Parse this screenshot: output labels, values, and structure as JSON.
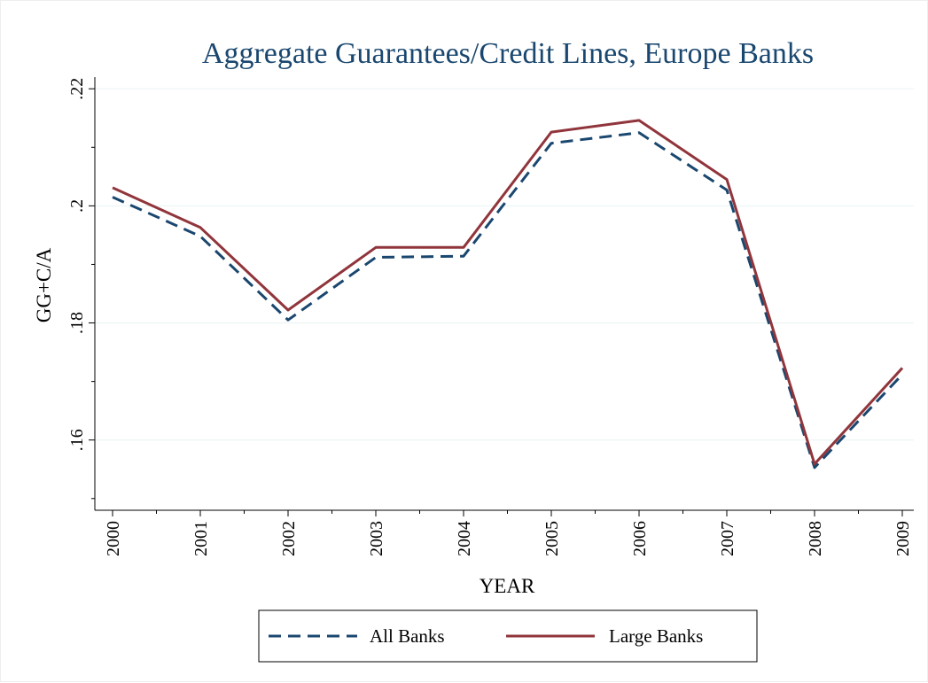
{
  "chart_data": {
    "type": "line",
    "title": "Aggregate Guarantees/Credit Lines, Europe Banks",
    "xlabel": "YEAR",
    "ylabel": "GG+C/A",
    "x": [
      2000,
      2001,
      2002,
      2003,
      2004,
      2005,
      2006,
      2007,
      2008,
      2009
    ],
    "x_tick_labels": [
      "2000",
      "2001",
      "2002",
      "2003",
      "2004",
      "2005",
      "2006",
      "2007",
      "2008",
      "2009"
    ],
    "y_ticks": [
      0.16,
      0.18,
      0.2,
      0.22
    ],
    "y_tick_labels": [
      ".16",
      ".18",
      ".2",
      ".22"
    ],
    "ylim": [
      0.148,
      0.222
    ],
    "grid": true,
    "legend_position": "bottom",
    "series": [
      {
        "name": "All Banks",
        "style": "dashed",
        "color": "#1a476f",
        "values": [
          0.2015,
          0.1948,
          0.1805,
          0.1912,
          0.1914,
          0.2107,
          0.2125,
          0.2027,
          0.1553,
          0.1712
        ]
      },
      {
        "name": "Large Banks",
        "style": "solid",
        "color": "#90353b",
        "values": [
          0.2031,
          0.1963,
          0.1822,
          0.1929,
          0.1929,
          0.2126,
          0.2146,
          0.2045,
          0.1559,
          0.1723
        ]
      }
    ]
  },
  "colors": {
    "title": "#1a476f",
    "grid": "#eaf2f3",
    "axis": "#000000"
  }
}
